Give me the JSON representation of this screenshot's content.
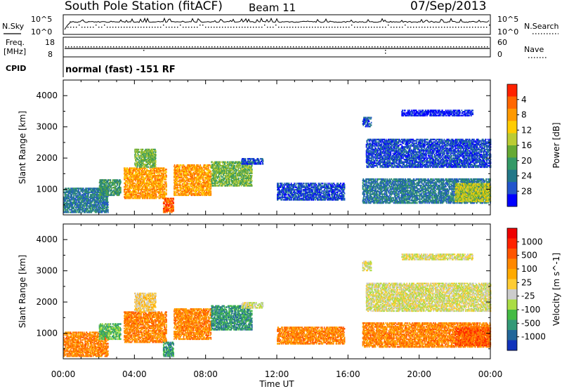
{
  "header": {
    "station": "South Pole Station (fitACF)",
    "beam": "Beam 11",
    "date": "07/Sep/2013"
  },
  "summary_panels": {
    "nsky_label": "N.Sky",
    "nsearch_label": "N.Search",
    "noise_ticks": [
      "10^5",
      "10^0"
    ],
    "freq_label_1": "Freq.",
    "freq_label_2": "[MHz]",
    "freq_ticks": [
      "18",
      "8"
    ],
    "nave_label": "Nave",
    "nave_ticks": [
      "60",
      "0"
    ],
    "cpid_label": "CPID",
    "cpid_text": "normal (fast) -151 RF"
  },
  "chart_data": [
    {
      "type": "heatmap",
      "name": "power-panel",
      "xlabel": "",
      "ylabel": "Slant Range [km]",
      "x_ticks": [
        "00:00",
        "04:00",
        "08:00",
        "12:00",
        "16:00",
        "20:00",
        "00:00"
      ],
      "xlim": [
        0,
        24
      ],
      "y_ticks": [
        1000,
        2000,
        3000,
        4000
      ],
      "ylim": [
        180,
        4500
      ],
      "colorbar": {
        "label": "Power [dB]",
        "ticks": [
          "4",
          "8",
          "12",
          "16",
          "20",
          "24",
          "28"
        ],
        "colors": [
          "#0000ff",
          "#2255cc",
          "#227788",
          "#339966",
          "#66aa33",
          "#bbcc33",
          "#ffcc00",
          "#ff9900",
          "#ff6600",
          "#ff2200"
        ]
      },
      "data_blobs": [
        {
          "t0": 0.0,
          "t1": 2.5,
          "r0": 250,
          "r1": 1050,
          "level": 2
        },
        {
          "t0": 2.0,
          "t1": 3.2,
          "r0": 800,
          "r1": 1300,
          "level": 3
        },
        {
          "t0": 3.4,
          "t1": 5.8,
          "r0": 700,
          "r1": 1700,
          "level": 7
        },
        {
          "t0": 4.0,
          "t1": 5.2,
          "r0": 1700,
          "r1": 2300,
          "level": 4
        },
        {
          "t0": 5.6,
          "t1": 6.2,
          "r0": 250,
          "r1": 700,
          "level": 8
        },
        {
          "t0": 6.2,
          "t1": 8.3,
          "r0": 800,
          "r1": 1800,
          "level": 7
        },
        {
          "t0": 8.3,
          "t1": 10.6,
          "r0": 1100,
          "r1": 1900,
          "level": 4
        },
        {
          "t0": 10.0,
          "t1": 11.2,
          "r0": 1800,
          "r1": 2000,
          "level": 1
        },
        {
          "t0": 12.0,
          "t1": 15.8,
          "r0": 650,
          "r1": 1200,
          "level": 1
        },
        {
          "t0": 16.8,
          "t1": 17.3,
          "r0": 3000,
          "r1": 3300,
          "level": 1
        },
        {
          "t0": 17.0,
          "t1": 24.0,
          "r0": 1700,
          "r1": 2600,
          "level": 1
        },
        {
          "t0": 19.0,
          "t1": 23.0,
          "r0": 3350,
          "r1": 3550,
          "level": 0
        },
        {
          "t0": 16.8,
          "t1": 24.0,
          "r0": 550,
          "r1": 1350,
          "level": 2
        },
        {
          "t0": 22.0,
          "t1": 24.0,
          "r0": 600,
          "r1": 1200,
          "level": 5
        }
      ]
    },
    {
      "type": "heatmap",
      "name": "velocity-panel",
      "xlabel": "Time UT",
      "ylabel": "Slant Range [km]",
      "x_ticks": [
        "00:00",
        "04:00",
        "08:00",
        "12:00",
        "16:00",
        "20:00",
        "00:00"
      ],
      "xlim": [
        0,
        24
      ],
      "y_ticks": [
        1000,
        2000,
        3000,
        4000
      ],
      "ylim": [
        180,
        4500
      ],
      "colorbar": {
        "label": "Velocity [m s^-1]",
        "ticks": [
          "1000",
          "500",
          "100",
          "25",
          "-25",
          "-100",
          "-500",
          "-1000"
        ],
        "colors": [
          "#1133bb",
          "#226699",
          "#339977",
          "#44bb44",
          "#aadd44",
          "#cccccc",
          "#ffcc33",
          "#ffaa00",
          "#ff8800",
          "#ff5500",
          "#ff2200",
          "#ee0000"
        ]
      },
      "data_blobs": [
        {
          "t0": 0.0,
          "t1": 2.5,
          "r0": 250,
          "r1": 1050,
          "level": 8
        },
        {
          "t0": 2.0,
          "t1": 3.2,
          "r0": 800,
          "r1": 1300,
          "level": 3
        },
        {
          "t0": 3.4,
          "t1": 5.8,
          "r0": 700,
          "r1": 1700,
          "level": 8
        },
        {
          "t0": 4.0,
          "t1": 5.2,
          "r0": 1700,
          "r1": 2300,
          "level": 6
        },
        {
          "t0": 5.6,
          "t1": 6.2,
          "r0": 250,
          "r1": 700,
          "level": 2
        },
        {
          "t0": 6.2,
          "t1": 8.3,
          "r0": 800,
          "r1": 1800,
          "level": 8
        },
        {
          "t0": 8.3,
          "t1": 10.6,
          "r0": 1100,
          "r1": 1900,
          "level": 2
        },
        {
          "t0": 10.0,
          "t1": 11.2,
          "r0": 1800,
          "r1": 2000,
          "level": 5
        },
        {
          "t0": 12.0,
          "t1": 15.8,
          "r0": 650,
          "r1": 1200,
          "level": 8
        },
        {
          "t0": 16.8,
          "t1": 17.3,
          "r0": 3000,
          "r1": 3300,
          "level": 5
        },
        {
          "t0": 17.0,
          "t1": 24.0,
          "r0": 1700,
          "r1": 2600,
          "level": 5
        },
        {
          "t0": 19.0,
          "t1": 23.0,
          "r0": 3350,
          "r1": 3550,
          "level": 5
        },
        {
          "t0": 16.8,
          "t1": 24.0,
          "r0": 550,
          "r1": 1350,
          "level": 8
        },
        {
          "t0": 22.0,
          "t1": 24.0,
          "r0": 600,
          "r1": 1200,
          "level": 9
        }
      ]
    }
  ]
}
